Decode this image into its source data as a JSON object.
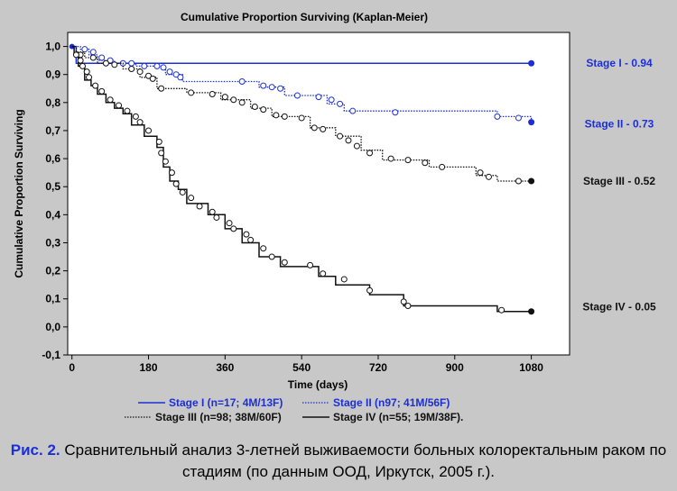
{
  "chart_data": {
    "type": "line",
    "title": "Cumulative Proportion Surviving (Kaplan-Meier)",
    "xlabel": "Time (days)",
    "ylabel": "Cumulative Proportion Surviving",
    "xlim": [
      -10,
      1170
    ],
    "ylim": [
      -0.1,
      1.05
    ],
    "xticks": [
      0,
      180,
      360,
      540,
      720,
      900,
      1080
    ],
    "yticks": [
      -0.1,
      0.0,
      0.1,
      0.2,
      0.3,
      0.4,
      0.5,
      0.6,
      0.7,
      0.8,
      0.9,
      1.0
    ],
    "ytick_labels": [
      "-0,1",
      "0,0",
      "0,1",
      "0,2",
      "0,3",
      "0,4",
      "0,5",
      "0,6",
      "0,7",
      "0,8",
      "0,9",
      "1,0"
    ],
    "grid": false,
    "legend_position": "bottom",
    "series": [
      {
        "name": "Stage I (n=17; 4M/13F)",
        "color": "#1c2fd6",
        "line_style": "solid",
        "end_label": "Stage I - 0.94",
        "points": [
          [
            0,
            1.0
          ],
          [
            10,
            1.0
          ],
          [
            10,
            0.94
          ],
          [
            1080,
            0.94
          ]
        ],
        "censored": [],
        "end_point": [
          1080,
          0.94
        ]
      },
      {
        "name": "Stage II (n97; 41M/56F)",
        "color": "#1c2fd6",
        "line_style": "dotted",
        "end_label": "Stage II - 0.73",
        "points": [
          [
            0,
            1.0
          ],
          [
            20,
            1.0
          ],
          [
            20,
            0.99
          ],
          [
            40,
            0.99
          ],
          [
            40,
            0.97
          ],
          [
            60,
            0.97
          ],
          [
            60,
            0.95
          ],
          [
            100,
            0.95
          ],
          [
            100,
            0.94
          ],
          [
            150,
            0.94
          ],
          [
            150,
            0.93
          ],
          [
            220,
            0.93
          ],
          [
            220,
            0.9
          ],
          [
            260,
            0.9
          ],
          [
            260,
            0.875
          ],
          [
            440,
            0.875
          ],
          [
            440,
            0.855
          ],
          [
            500,
            0.855
          ],
          [
            500,
            0.825
          ],
          [
            600,
            0.825
          ],
          [
            600,
            0.795
          ],
          [
            640,
            0.795
          ],
          [
            640,
            0.77
          ],
          [
            1000,
            0.77
          ],
          [
            1000,
            0.75
          ],
          [
            1080,
            0.75
          ],
          [
            1080,
            0.73
          ]
        ],
        "censored": [
          [
            30,
            0.99
          ],
          [
            50,
            0.98
          ],
          [
            70,
            0.96
          ],
          [
            90,
            0.95
          ],
          [
            120,
            0.94
          ],
          [
            140,
            0.94
          ],
          [
            170,
            0.93
          ],
          [
            200,
            0.93
          ],
          [
            215,
            0.925
          ],
          [
            230,
            0.91
          ],
          [
            245,
            0.9
          ],
          [
            255,
            0.89
          ],
          [
            400,
            0.875
          ],
          [
            450,
            0.86
          ],
          [
            470,
            0.855
          ],
          [
            490,
            0.85
          ],
          [
            530,
            0.825
          ],
          [
            580,
            0.82
          ],
          [
            610,
            0.81
          ],
          [
            630,
            0.795
          ],
          [
            660,
            0.77
          ],
          [
            760,
            0.765
          ],
          [
            1000,
            0.75
          ],
          [
            1050,
            0.745
          ]
        ],
        "end_point": [
          1080,
          0.73
        ]
      },
      {
        "name": "Stage III (n=98; 38M/60F)",
        "color": "#111111",
        "line_style": "dotted",
        "end_label": "Stage III - 0.52",
        "points": [
          [
            0,
            1.0
          ],
          [
            10,
            1.0
          ],
          [
            10,
            0.98
          ],
          [
            30,
            0.98
          ],
          [
            30,
            0.96
          ],
          [
            60,
            0.96
          ],
          [
            60,
            0.94
          ],
          [
            120,
            0.94
          ],
          [
            120,
            0.92
          ],
          [
            160,
            0.92
          ],
          [
            160,
            0.89
          ],
          [
            200,
            0.89
          ],
          [
            200,
            0.85
          ],
          [
            270,
            0.85
          ],
          [
            270,
            0.835
          ],
          [
            350,
            0.835
          ],
          [
            350,
            0.81
          ],
          [
            420,
            0.81
          ],
          [
            420,
            0.78
          ],
          [
            470,
            0.78
          ],
          [
            470,
            0.75
          ],
          [
            560,
            0.75
          ],
          [
            560,
            0.71
          ],
          [
            620,
            0.71
          ],
          [
            620,
            0.68
          ],
          [
            680,
            0.68
          ],
          [
            680,
            0.63
          ],
          [
            730,
            0.63
          ],
          [
            730,
            0.595
          ],
          [
            840,
            0.595
          ],
          [
            840,
            0.57
          ],
          [
            950,
            0.57
          ],
          [
            950,
            0.54
          ],
          [
            1000,
            0.54
          ],
          [
            1000,
            0.52
          ],
          [
            1080,
            0.52
          ]
        ],
        "censored": [
          [
            20,
            0.97
          ],
          [
            50,
            0.96
          ],
          [
            80,
            0.94
          ],
          [
            100,
            0.935
          ],
          [
            140,
            0.92
          ],
          [
            160,
            0.91
          ],
          [
            180,
            0.895
          ],
          [
            190,
            0.885
          ],
          [
            210,
            0.85
          ],
          [
            280,
            0.835
          ],
          [
            330,
            0.83
          ],
          [
            360,
            0.82
          ],
          [
            380,
            0.81
          ],
          [
            400,
            0.8
          ],
          [
            430,
            0.785
          ],
          [
            450,
            0.775
          ],
          [
            480,
            0.755
          ],
          [
            500,
            0.75
          ],
          [
            540,
            0.745
          ],
          [
            570,
            0.71
          ],
          [
            590,
            0.705
          ],
          [
            630,
            0.68
          ],
          [
            650,
            0.665
          ],
          [
            670,
            0.645
          ],
          [
            700,
            0.62
          ],
          [
            750,
            0.6
          ],
          [
            790,
            0.595
          ],
          [
            830,
            0.585
          ],
          [
            870,
            0.57
          ],
          [
            960,
            0.55
          ],
          [
            980,
            0.535
          ],
          [
            1050,
            0.52
          ]
        ],
        "end_point": [
          1080,
          0.52
        ]
      },
      {
        "name": "Stage IV (n=55; 19M/38F).",
        "color": "#111111",
        "line_style": "solid",
        "end_label": "Stage IV - 0.05",
        "points": [
          [
            0,
            1.0
          ],
          [
            5,
            1.0
          ],
          [
            5,
            0.97
          ],
          [
            15,
            0.97
          ],
          [
            15,
            0.93
          ],
          [
            30,
            0.93
          ],
          [
            30,
            0.88
          ],
          [
            45,
            0.88
          ],
          [
            45,
            0.86
          ],
          [
            60,
            0.86
          ],
          [
            60,
            0.83
          ],
          [
            80,
            0.83
          ],
          [
            80,
            0.8
          ],
          [
            100,
            0.8
          ],
          [
            100,
            0.78
          ],
          [
            120,
            0.78
          ],
          [
            120,
            0.76
          ],
          [
            140,
            0.76
          ],
          [
            140,
            0.72
          ],
          [
            170,
            0.72
          ],
          [
            170,
            0.68
          ],
          [
            200,
            0.68
          ],
          [
            200,
            0.64
          ],
          [
            215,
            0.64
          ],
          [
            215,
            0.57
          ],
          [
            230,
            0.57
          ],
          [
            230,
            0.52
          ],
          [
            250,
            0.52
          ],
          [
            250,
            0.49
          ],
          [
            270,
            0.49
          ],
          [
            270,
            0.44
          ],
          [
            320,
            0.44
          ],
          [
            320,
            0.4
          ],
          [
            360,
            0.4
          ],
          [
            360,
            0.35
          ],
          [
            400,
            0.35
          ],
          [
            400,
            0.3
          ],
          [
            440,
            0.3
          ],
          [
            440,
            0.25
          ],
          [
            490,
            0.25
          ],
          [
            490,
            0.215
          ],
          [
            580,
            0.215
          ],
          [
            580,
            0.18
          ],
          [
            620,
            0.18
          ],
          [
            620,
            0.15
          ],
          [
            700,
            0.15
          ],
          [
            700,
            0.115
          ],
          [
            780,
            0.115
          ],
          [
            780,
            0.075
          ],
          [
            1000,
            0.075
          ],
          [
            1000,
            0.055
          ],
          [
            1080,
            0.055
          ]
        ],
        "censored": [
          [
            10,
            0.97
          ],
          [
            20,
            0.95
          ],
          [
            25,
            0.93
          ],
          [
            35,
            0.91
          ],
          [
            40,
            0.89
          ],
          [
            55,
            0.86
          ],
          [
            70,
            0.84
          ],
          [
            90,
            0.81
          ],
          [
            110,
            0.79
          ],
          [
            130,
            0.77
          ],
          [
            150,
            0.75
          ],
          [
            160,
            0.73
          ],
          [
            180,
            0.7
          ],
          [
            205,
            0.66
          ],
          [
            210,
            0.62
          ],
          [
            220,
            0.59
          ],
          [
            235,
            0.55
          ],
          [
            245,
            0.51
          ],
          [
            260,
            0.48
          ],
          [
            280,
            0.46
          ],
          [
            300,
            0.43
          ],
          [
            330,
            0.41
          ],
          [
            340,
            0.39
          ],
          [
            370,
            0.37
          ],
          [
            380,
            0.35
          ],
          [
            410,
            0.33
          ],
          [
            420,
            0.31
          ],
          [
            450,
            0.28
          ],
          [
            470,
            0.25
          ],
          [
            500,
            0.23
          ],
          [
            560,
            0.22
          ],
          [
            590,
            0.19
          ],
          [
            640,
            0.17
          ],
          [
            700,
            0.13
          ],
          [
            780,
            0.09
          ],
          [
            790,
            0.075
          ],
          [
            1010,
            0.06
          ]
        ],
        "end_point": [
          1080,
          0.055
        ]
      }
    ]
  },
  "caption": {
    "lead": "Рис. 2.",
    "body": " Сравнительный анализ 3-летней выживаемости больных колоректальным раком по стадиям (по данным ООД, Иркутск, 2005 г.)."
  }
}
